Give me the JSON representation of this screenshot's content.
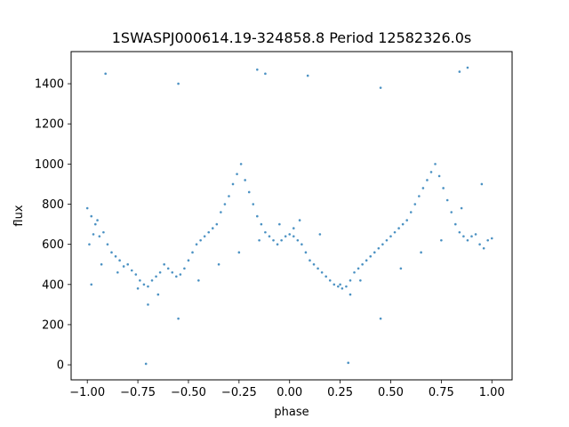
{
  "chart_data": {
    "type": "scatter",
    "title": "1SWASPJ000614.19-324858.8 Period 12582326.0s",
    "xlabel": "phase",
    "ylabel": "flux",
    "xlim": [
      -1.08,
      1.1
    ],
    "ylim": [
      -75,
      1560
    ],
    "xticks": [
      -1.0,
      -0.75,
      -0.5,
      -0.25,
      0.0,
      0.25,
      0.5,
      0.75,
      1.0
    ],
    "xtick_labels": [
      "−1.00",
      "−0.75",
      "−0.50",
      "−0.25",
      "0.00",
      "0.25",
      "0.50",
      "0.75",
      "1.00"
    ],
    "yticks": [
      0,
      200,
      400,
      600,
      800,
      1000,
      1200,
      1400
    ],
    "ytick_labels": [
      "0",
      "200",
      "400",
      "600",
      "800",
      "1000",
      "1200",
      "1400"
    ],
    "grid": false,
    "legend": "none",
    "point_color": "#1f77b4",
    "series": [
      {
        "x": [
          -1.0,
          -0.99,
          -0.98,
          -0.97,
          -0.96,
          -0.95,
          -0.94,
          -0.92,
          -0.9,
          -0.88,
          -0.86,
          -0.84,
          -0.82,
          -0.8,
          -0.78,
          -0.76,
          -0.74,
          -0.72,
          -0.7,
          -0.68,
          -0.66,
          -0.64,
          -0.62,
          -0.6,
          -0.58,
          -0.56,
          -0.54,
          -0.52,
          -0.5,
          -0.48,
          -0.46,
          -0.44,
          -0.42,
          -0.4,
          -0.38,
          -0.36,
          -0.34,
          -0.32,
          -0.3,
          -0.28,
          -0.26,
          -0.24,
          -0.22,
          -0.2,
          -0.18,
          -0.16,
          -0.14,
          -0.12,
          -0.1,
          -0.08,
          -0.06,
          -0.04,
          -0.02,
          0.0,
          0.02,
          0.04,
          0.06,
          0.08,
          0.1,
          0.12,
          0.14,
          0.16,
          0.18,
          0.2,
          0.22,
          0.24,
          0.26,
          0.28,
          0.3,
          0.32,
          0.34,
          0.36,
          0.38,
          0.4,
          0.42,
          0.44,
          0.46,
          0.48,
          0.5,
          0.52,
          0.54,
          0.56,
          0.58,
          0.6,
          0.62,
          0.64,
          0.66,
          0.68,
          0.7,
          0.72,
          0.74,
          0.76,
          0.78,
          0.8,
          0.82,
          0.84,
          0.86,
          0.88,
          0.9,
          0.92,
          0.94,
          0.96,
          0.98,
          1.0,
          -0.98,
          -0.93,
          -0.85,
          -0.75,
          -0.7,
          -0.65,
          -0.55,
          -0.45,
          -0.35,
          -0.25,
          -0.15,
          -0.05,
          0.02,
          0.05,
          0.15,
          0.25,
          0.3,
          0.35,
          0.45,
          0.55,
          0.65,
          0.75,
          0.85,
          0.95,
          -0.71,
          0.29,
          -0.55,
          0.45,
          -0.12,
          0.88,
          -0.16,
          0.84,
          -0.91,
          0.09
        ],
        "y": [
          780,
          600,
          740,
          650,
          700,
          720,
          640,
          660,
          600,
          560,
          540,
          520,
          490,
          500,
          470,
          450,
          420,
          400,
          390,
          420,
          440,
          460,
          500,
          480,
          460,
          440,
          450,
          480,
          520,
          560,
          600,
          620,
          640,
          660,
          680,
          700,
          760,
          800,
          840,
          900,
          950,
          1000,
          920,
          860,
          800,
          740,
          700,
          660,
          640,
          620,
          600,
          620,
          640,
          650,
          640,
          620,
          600,
          560,
          520,
          500,
          480,
          460,
          440,
          420,
          400,
          390,
          380,
          390,
          420,
          460,
          480,
          500,
          520,
          540,
          560,
          580,
          600,
          620,
          640,
          660,
          680,
          700,
          720,
          760,
          800,
          840,
          880,
          920,
          960,
          1000,
          940,
          880,
          820,
          760,
          700,
          660,
          640,
          620,
          640,
          650,
          600,
          580,
          620,
          630,
          400,
          500,
          460,
          380,
          300,
          350,
          230,
          420,
          500,
          560,
          620,
          700,
          680,
          720,
          650,
          400,
          350,
          420,
          230,
          480,
          560,
          620,
          780,
          900,
          5,
          10,
          1400,
          1380,
          1450,
          1480,
          1470,
          1460,
          1450,
          1440
        ]
      }
    ]
  }
}
